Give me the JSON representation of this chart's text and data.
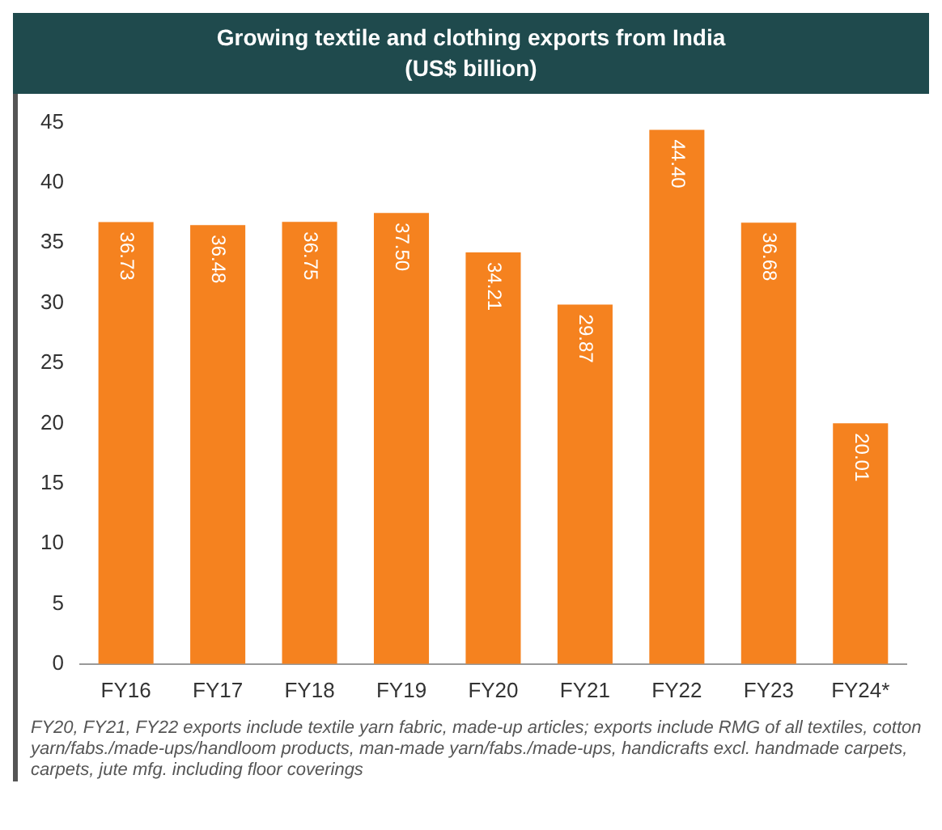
{
  "chart_data": {
    "type": "bar",
    "title": "Growing textile and clothing exports from India",
    "subtitle": "(US$ billion)",
    "categories": [
      "FY16",
      "FY17",
      "FY18",
      "FY19",
      "FY20",
      "FY21",
      "FY22",
      "FY23",
      "FY24*"
    ],
    "values": [
      36.73,
      36.48,
      36.75,
      37.5,
      34.21,
      29.87,
      44.4,
      36.68,
      20.01
    ],
    "value_labels": [
      "36.73",
      "36.48",
      "36.75",
      "37.50",
      "34.21",
      "29.87",
      "44.40",
      "36.68",
      "20.01"
    ],
    "color": "#f5821f",
    "ylim": [
      0,
      45
    ],
    "yticks": [
      0,
      5,
      10,
      15,
      20,
      25,
      30,
      35,
      40,
      45
    ],
    "grid": false,
    "legend": false,
    "annotations": [
      "FY20, FY21, FY22 exports include textile yarn fabric, made-up articles; exports include RMG of all textiles, cotton yarn/fabs./made-ups/handloom products, man-made yarn/fabs./made-ups, handicrafts excl. handmade carpets, carpets, jute mfg. including floor coverings"
    ]
  }
}
